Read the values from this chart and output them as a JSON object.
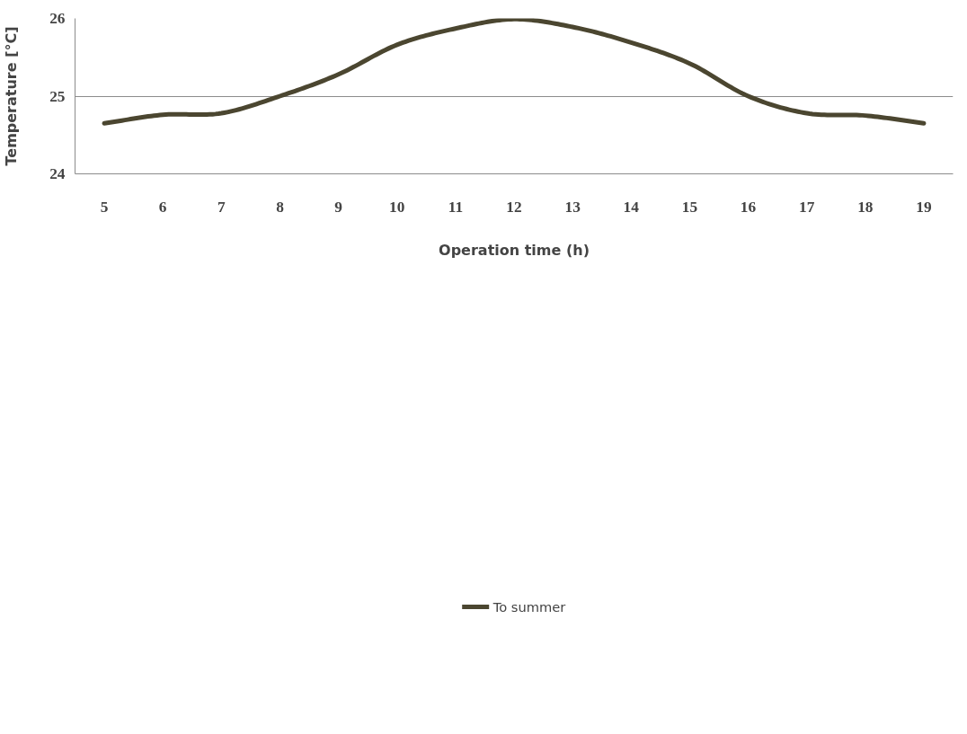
{
  "chart_data": {
    "type": "line",
    "xlabel": "Operation time (h)",
    "ylabel": "Temperature [°C]",
    "x": [
      5,
      6,
      7,
      8,
      9,
      10,
      11,
      12,
      13,
      14,
      15,
      16,
      17,
      18,
      19
    ],
    "series": [
      {
        "name": "To summer",
        "color": "#4b4630",
        "values": [
          24.65,
          24.76,
          24.78,
          25.0,
          25.28,
          25.66,
          25.87,
          25.99,
          25.89,
          25.69,
          25.42,
          25.0,
          24.78,
          24.75,
          24.65
        ]
      }
    ],
    "xlim": [
      4.5,
      19.5
    ],
    "xticks": [
      5,
      6,
      7,
      8,
      9,
      10,
      11,
      12,
      13,
      14,
      15,
      16,
      17,
      18,
      19
    ],
    "ylim": [
      24,
      26
    ],
    "yticks": [
      24,
      25,
      26
    ],
    "grid": "y",
    "legend": "bottom",
    "marker": "none",
    "line_style": "solid"
  }
}
